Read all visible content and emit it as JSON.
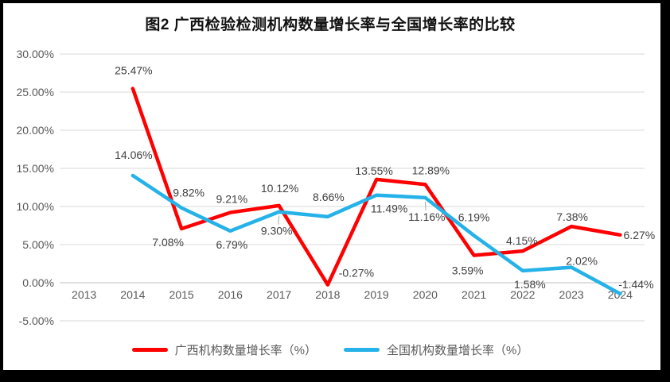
{
  "title": "图2 广西检验检测机构数量增长率与全国增长率的比较",
  "colors": {
    "guangxi": "#FF0000",
    "national": "#25B2E8",
    "gridline": "#D9D9D9",
    "axis": "#BFBFBF",
    "data_label": "#404040",
    "axis_label": "#595959",
    "leader": "#A6A6A6",
    "frame": "#000000"
  },
  "chart_data": {
    "type": "line",
    "categories": [
      "2013",
      "2014",
      "2015",
      "2016",
      "2017",
      "2018",
      "2019",
      "2020",
      "2021",
      "2022",
      "2023",
      "2024"
    ],
    "series": [
      {
        "name": "广西机构数量增长率（%）",
        "color_key": "guangxi",
        "values": [
          null,
          25.47,
          7.08,
          9.21,
          10.12,
          -0.27,
          13.55,
          12.89,
          3.59,
          4.15,
          7.38,
          6.27
        ]
      },
      {
        "name": "全国机构数量增长率（%）",
        "color_key": "national",
        "values": [
          null,
          14.06,
          9.82,
          6.79,
          9.3,
          8.66,
          11.49,
          11.16,
          6.19,
          1.58,
          2.02,
          -1.44
        ]
      }
    ],
    "ylim": [
      -5,
      30
    ],
    "ytick_step": 5,
    "ytick_labels": [
      "30.00%",
      "25.00%",
      "20.00%",
      "15.00%",
      "10.00%",
      "5.00%",
      "0.00%",
      "-5.00%"
    ],
    "grid": true,
    "legend_position": "bottom",
    "data_labels_suffix": "%"
  }
}
